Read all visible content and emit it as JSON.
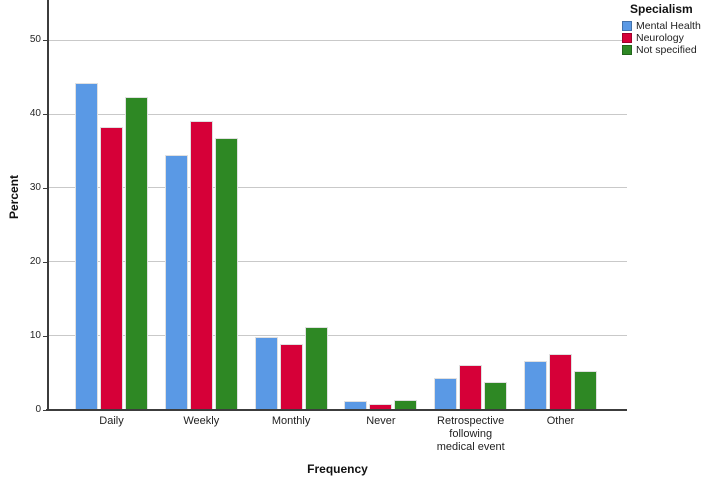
{
  "colors": {
    "background": "#ffffff",
    "axis": "#3c3c3c",
    "gridline": "#c9c9c9",
    "text": "#1f1f1f"
  },
  "legend": {
    "title": "Specialism",
    "entries": [
      {
        "label": "Mental Health",
        "color": "#5A99E5"
      },
      {
        "label": "Neurology",
        "color": "#D60038"
      },
      {
        "label": "Not specified",
        "color": "#2E8824"
      }
    ]
  },
  "chart_data": {
    "type": "bar",
    "title": "",
    "xlabel": "Frequency",
    "ylabel": "Percent",
    "ylim": [
      0,
      55.5
    ],
    "yticks": [
      0,
      10,
      20,
      30,
      40,
      50
    ],
    "grid": true,
    "legend_position": "top-right",
    "legend_title": "Specialism",
    "categories": [
      {
        "label": "Daily",
        "lines": [
          "Daily"
        ]
      },
      {
        "label": "Weekly",
        "lines": [
          "Weekly"
        ]
      },
      {
        "label": "Monthly",
        "lines": [
          "Monthly"
        ]
      },
      {
        "label": "Never",
        "lines": [
          "Never"
        ]
      },
      {
        "label": "Retrospective following medical event",
        "lines": [
          "Retrospective",
          "following",
          "medical event"
        ]
      },
      {
        "label": "Other",
        "lines": [
          "Other"
        ]
      }
    ],
    "series": [
      {
        "name": "Mental Health",
        "color": "#5A99E5",
        "values": [
          44.2,
          34.4,
          9.8,
          1.1,
          4.3,
          6.5
        ]
      },
      {
        "name": "Neurology",
        "color": "#D60038",
        "values": [
          38.3,
          39.0,
          8.9,
          0.8,
          6.0,
          7.5
        ]
      },
      {
        "name": "Not specified",
        "color": "#2E8824",
        "values": [
          42.3,
          36.7,
          11.2,
          1.3,
          3.7,
          5.2
        ]
      }
    ]
  }
}
